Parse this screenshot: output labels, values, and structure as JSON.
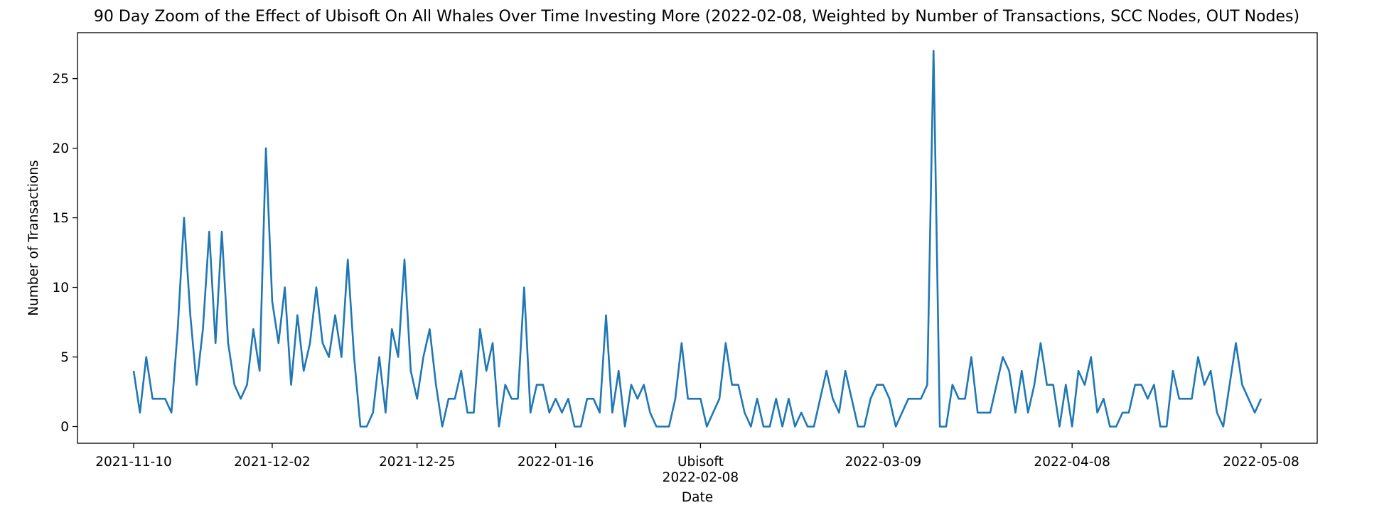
{
  "chart_data": {
    "type": "line",
    "title": "90 Day Zoom of the Effect of Ubisoft On All Whales Over Time Investing More (2022-02-08, Weighted by Number of Transactions, SCC Nodes, OUT Nodes)",
    "xlabel": "Date",
    "ylabel": "Number of Transactions",
    "x_start": "2021-11-10",
    "x_range": [
      "2021-11-10",
      "2022-05-08"
    ],
    "ylim": [
      -1.2,
      28.3
    ],
    "yticks": [
      0,
      5,
      10,
      15,
      20,
      25
    ],
    "xticks": [
      {
        "date": "2021-11-10",
        "label": "2021-11-10"
      },
      {
        "date": "2021-12-02",
        "label": "2021-12-02"
      },
      {
        "date": "2021-12-25",
        "label": "2021-12-25"
      },
      {
        "date": "2022-01-16",
        "label": "2022-01-16"
      },
      {
        "date": "2022-02-08",
        "label": "Ubisoft",
        "sublabel": "2022-02-08"
      },
      {
        "date": "2022-03-09",
        "label": "2022-03-09"
      },
      {
        "date": "2022-04-08",
        "label": "2022-04-08"
      },
      {
        "date": "2022-05-08",
        "label": "2022-05-08"
      }
    ],
    "grid": false,
    "legend": "none",
    "color": "#1f77b4",
    "values": [
      4,
      1,
      5,
      2,
      2,
      2,
      1,
      7,
      15,
      8,
      3,
      7,
      14,
      6,
      14,
      6,
      3,
      2,
      3,
      7,
      4,
      20,
      9,
      6,
      10,
      3,
      8,
      4,
      6,
      10,
      6,
      5,
      8,
      5,
      12,
      5,
      0,
      0,
      1,
      5,
      1,
      7,
      5,
      12,
      4,
      2,
      5,
      7,
      3,
      0,
      2,
      2,
      4,
      1,
      1,
      7,
      4,
      6,
      0,
      3,
      2,
      2,
      10,
      1,
      3,
      3,
      1,
      2,
      1,
      2,
      0,
      0,
      2,
      2,
      1,
      8,
      1,
      4,
      0,
      3,
      2,
      3,
      1,
      0,
      0,
      0,
      2,
      6,
      2,
      2,
      2,
      0,
      1,
      2,
      6,
      3,
      3,
      1,
      0,
      2,
      0,
      0,
      2,
      0,
      2,
      0,
      1,
      0,
      0,
      2,
      4,
      2,
      1,
      4,
      2,
      0,
      0,
      2,
      3,
      3,
      2,
      0,
      1,
      2,
      2,
      2,
      3,
      27,
      0,
      0,
      3,
      2,
      2,
      5,
      1,
      1,
      1,
      3,
      5,
      4,
      1,
      4,
      1,
      3,
      6,
      3,
      3,
      0,
      3,
      0,
      4,
      3,
      5,
      1,
      2,
      0,
      0,
      1,
      1,
      3,
      3,
      2,
      3,
      0,
      0,
      4,
      2,
      2,
      2,
      5,
      3,
      4,
      1,
      0,
      3,
      6,
      3,
      2,
      1,
      2
    ]
  }
}
